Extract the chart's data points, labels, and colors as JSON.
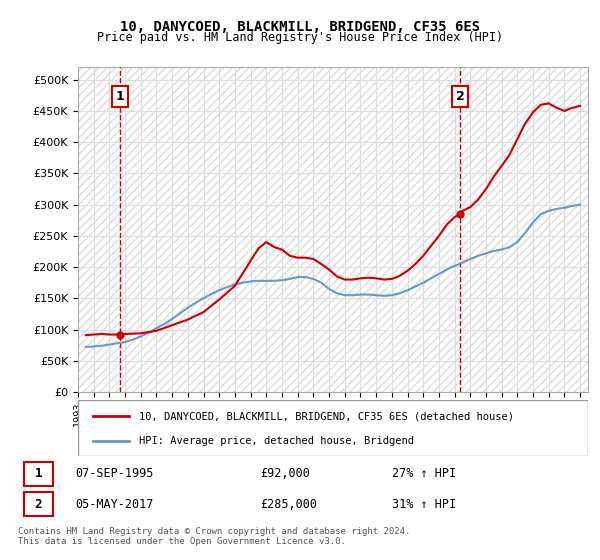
{
  "title1": "10, DANYCOED, BLACKMILL, BRIDGEND, CF35 6ES",
  "title2": "Price paid vs. HM Land Registry's House Price Index (HPI)",
  "legend_line1": "10, DANYCOED, BLACKMILL, BRIDGEND, CF35 6ES (detached house)",
  "legend_line2": "HPI: Average price, detached house, Bridgend",
  "annotation1": {
    "label": "1",
    "date": "07-SEP-1995",
    "price": "£92,000",
    "hpi": "27% ↑ HPI"
  },
  "annotation2": {
    "label": "2",
    "date": "05-MAY-2017",
    "price": "£285,000",
    "hpi": "31% ↑ HPI"
  },
  "footer": "Contains HM Land Registry data © Crown copyright and database right 2024.\nThis data is licensed under the Open Government Licence v3.0.",
  "ylim": [
    0,
    520000
  ],
  "yticks": [
    0,
    50000,
    100000,
    150000,
    200000,
    250000,
    300000,
    350000,
    400000,
    450000,
    500000
  ],
  "ytick_labels": [
    "£0",
    "£50K",
    "£100K",
    "£150K",
    "£200K",
    "£250K",
    "£300K",
    "£350K",
    "£400K",
    "£450K",
    "£500K"
  ],
  "xmin": 1993.0,
  "xmax": 2025.5,
  "sale1_x": 1995.69,
  "sale1_y": 92000,
  "sale2_x": 2017.35,
  "sale2_y": 285000,
  "hpi_color": "#6699cc",
  "property_color": "#cc0000",
  "vline_color": "#cc0000",
  "grid_color": "#dddddd",
  "background_hatch_color": "#e8e8e8",
  "hpi_data_x": [
    1993.5,
    1994.0,
    1994.5,
    1995.0,
    1995.5,
    1996.0,
    1996.5,
    1997.0,
    1997.5,
    1998.0,
    1998.5,
    1999.0,
    1999.5,
    2000.0,
    2000.5,
    2001.0,
    2001.5,
    2002.0,
    2002.5,
    2003.0,
    2003.5,
    2004.0,
    2004.5,
    2005.0,
    2005.5,
    2006.0,
    2006.5,
    2007.0,
    2007.5,
    2008.0,
    2008.5,
    2009.0,
    2009.5,
    2010.0,
    2010.5,
    2011.0,
    2011.5,
    2012.0,
    2012.5,
    2013.0,
    2013.5,
    2014.0,
    2014.5,
    2015.0,
    2015.5,
    2016.0,
    2016.5,
    2017.0,
    2017.5,
    2018.0,
    2018.5,
    2019.0,
    2019.5,
    2020.0,
    2020.5,
    2021.0,
    2021.5,
    2022.0,
    2022.5,
    2023.0,
    2023.5,
    2024.0,
    2024.5,
    2025.0
  ],
  "hpi_data_y": [
    72000,
    73000,
    74000,
    76000,
    78000,
    80000,
    84000,
    89000,
    95000,
    102000,
    109000,
    117000,
    126000,
    135000,
    143000,
    150000,
    157000,
    163000,
    168000,
    172000,
    175000,
    177000,
    178000,
    178000,
    178000,
    179000,
    181000,
    184000,
    184000,
    181000,
    175000,
    165000,
    158000,
    155000,
    155000,
    156000,
    156000,
    155000,
    154000,
    155000,
    158000,
    163000,
    169000,
    175000,
    182000,
    189000,
    196000,
    202000,
    207000,
    213000,
    218000,
    222000,
    226000,
    228000,
    232000,
    240000,
    255000,
    272000,
    285000,
    290000,
    293000,
    295000,
    298000,
    300000
  ],
  "property_data_x": [
    1993.5,
    1994.0,
    1994.5,
    1995.0,
    1995.5,
    1995.69,
    1996.0,
    1997.0,
    1998.0,
    1999.0,
    2000.0,
    2001.0,
    2002.0,
    2003.0,
    2004.0,
    2004.5,
    2005.0,
    2005.5,
    2006.0,
    2006.5,
    2007.0,
    2007.5,
    2008.0,
    2008.5,
    2009.0,
    2009.5,
    2010.0,
    2010.5,
    2011.0,
    2011.5,
    2012.0,
    2012.5,
    2013.0,
    2013.5,
    2014.0,
    2014.5,
    2015.0,
    2015.5,
    2016.0,
    2016.5,
    2017.0,
    2017.35,
    2017.5,
    2018.0,
    2018.5,
    2019.0,
    2019.5,
    2020.0,
    2020.5,
    2021.0,
    2021.5,
    2022.0,
    2022.5,
    2023.0,
    2023.5,
    2024.0,
    2024.5,
    2025.0
  ],
  "property_data_y": [
    91000,
    92000,
    93000,
    92000,
    92000,
    92000,
    92800,
    94000,
    98000,
    107000,
    116000,
    128000,
    148000,
    170000,
    210000,
    230000,
    240000,
    232000,
    228000,
    218000,
    215000,
    215000,
    213000,
    205000,
    196000,
    185000,
    180000,
    180000,
    182000,
    183000,
    182000,
    180000,
    181000,
    186000,
    194000,
    205000,
    218000,
    234000,
    250000,
    268000,
    280000,
    285000,
    290000,
    296000,
    308000,
    325000,
    345000,
    362000,
    380000,
    405000,
    430000,
    448000,
    460000,
    462000,
    455000,
    450000,
    455000,
    458000
  ]
}
